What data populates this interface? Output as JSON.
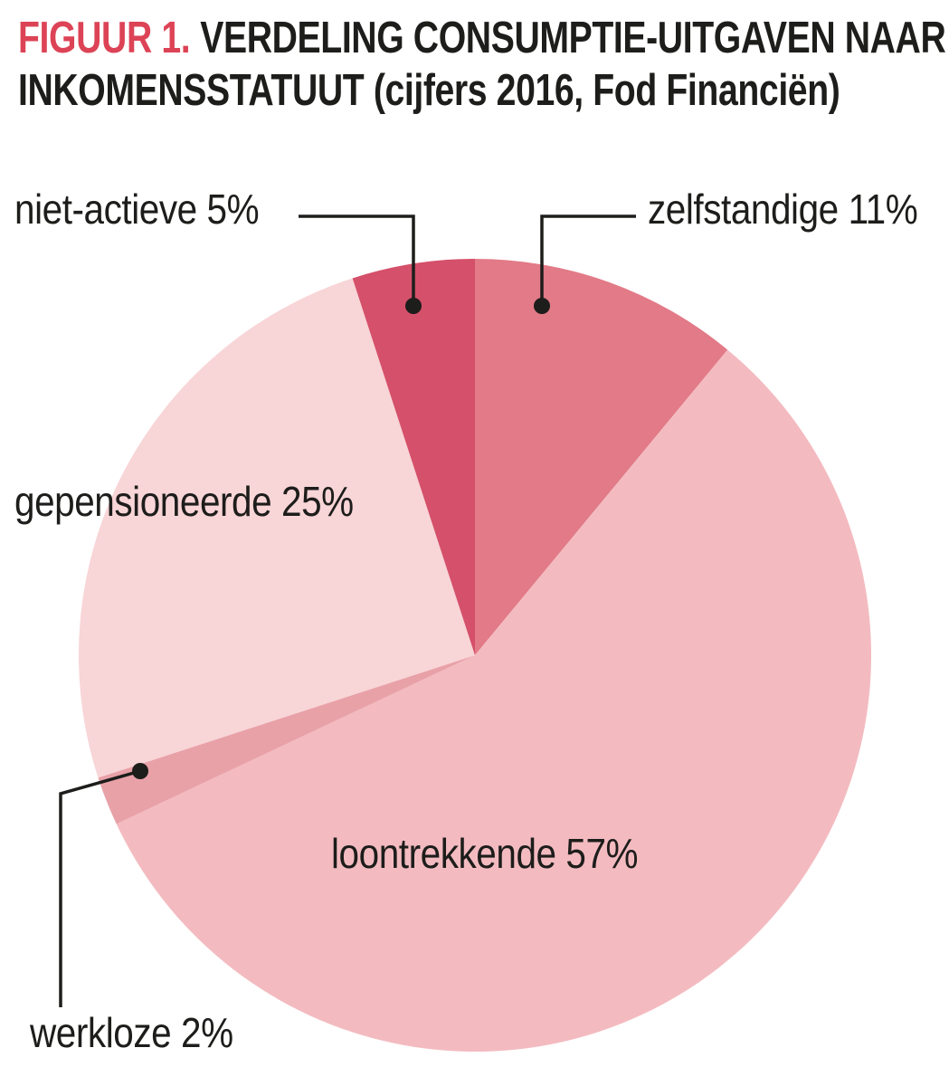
{
  "page": {
    "background_color": "#ffffff"
  },
  "header": {
    "figure_label": "FIGUUR 1.",
    "figure_label_color": "#dd4356",
    "title_line1_rest": "VERDELING CONSUMPTIE-UITGAVEN NAAR",
    "title_line2": "INKOMENSSTATUUT (cijfers 2016, Fod Financiën)",
    "title_color": "#1d1d1b"
  },
  "chart_data": {
    "type": "pie",
    "title": "FIGUUR 1. VERDELING CONSUMPTIE-UITGAVEN NAAR INKOMENSSTATUUT (cijfers 2016, Fod Financiën)",
    "unit": "%",
    "direction": "clockwise",
    "start_angle_deg": 0,
    "legend_position": "callout-labels",
    "slices": [
      {
        "label": "zelfstandige",
        "value": 11,
        "color": "#e27a87"
      },
      {
        "label": "loontrekkende",
        "value": 57,
        "color": "#f3bbc0"
      },
      {
        "label": "werkloze",
        "value": 2,
        "color": "#e9a1a8"
      },
      {
        "label": "gepensioneerde",
        "value": 25,
        "color": "#f8d5d7"
      },
      {
        "label": "niet-actieve",
        "value": 5,
        "color": "#d5506a"
      }
    ],
    "callout_text_color": "#1d1d1b",
    "callout_line_color": "#1d1d1b"
  }
}
